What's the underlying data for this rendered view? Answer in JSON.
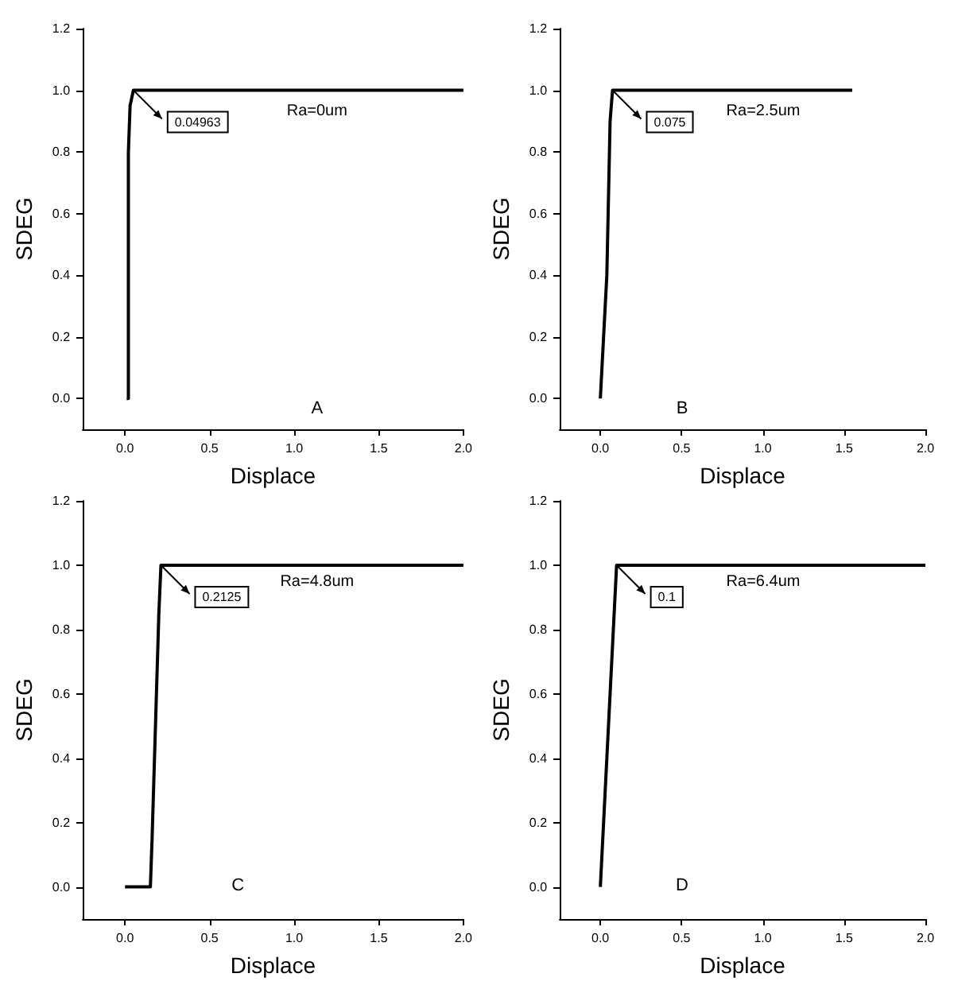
{
  "chart_data": [
    {
      "type": "line",
      "xlabel": "Displace",
      "ylabel": "SDEG",
      "xlim": [
        -0.25,
        2.0
      ],
      "ylim": [
        -0.1,
        1.2
      ],
      "xticks": [
        {
          "value": 0,
          "label": "0.0"
        },
        {
          "value": 0.5,
          "label": "0.5"
        },
        {
          "value": 1,
          "label": "1.0"
        },
        {
          "value": 1.5,
          "label": "1.5"
        },
        {
          "value": 2,
          "label": "2.0"
        }
      ],
      "yticks": [
        {
          "value": 0,
          "label": "0.0"
        },
        {
          "value": 0.2,
          "label": "0.2"
        },
        {
          "value": 0.4,
          "label": "0.4"
        },
        {
          "value": 0.6,
          "label": "0.6"
        },
        {
          "value": 0.8,
          "label": "0.8"
        },
        {
          "value": 1,
          "label": "1.0"
        },
        {
          "value": 1.2,
          "label": "1.2"
        }
      ],
      "series": [
        {
          "color": "#000000",
          "x": [
            0.01,
            0.02,
            0.02,
            0.03,
            0.04963,
            2.0
          ],
          "values": [
            0,
            0,
            0.8,
            0.95,
            1,
            1
          ]
        }
      ],
      "annotations": [
        {
          "text": "0.04963",
          "x": 0.04963,
          "y": 1
        },
        "Ra=0um",
        "A"
      ]
    },
    {
      "type": "line",
      "xlabel": "Displace",
      "ylabel": "SDEG",
      "xlim": [
        -0.25,
        2.0
      ],
      "ylim": [
        -0.1,
        1.2
      ],
      "xticks": [
        {
          "value": 0,
          "label": "0.0"
        },
        {
          "value": 0.5,
          "label": "0.5"
        },
        {
          "value": 1,
          "label": "1.0"
        },
        {
          "value": 1.5,
          "label": "1.5"
        },
        {
          "value": 2,
          "label": "2.0"
        }
      ],
      "yticks": [
        {
          "value": 0,
          "label": "0.0"
        },
        {
          "value": 0.2,
          "label": "0.2"
        },
        {
          "value": 0.4,
          "label": "0.4"
        },
        {
          "value": 0.6,
          "label": "0.6"
        },
        {
          "value": 0.8,
          "label": "0.8"
        },
        {
          "value": 1,
          "label": "1.0"
        },
        {
          "value": 1.2,
          "label": "1.2"
        }
      ],
      "series": [
        {
          "color": "#000000",
          "x": [
            0,
            0.04,
            0.06,
            0.075,
            1.55
          ],
          "values": [
            0,
            0.4,
            0.9,
            1,
            1
          ]
        }
      ],
      "annotations": [
        {
          "text": "0.075",
          "x": 0.075,
          "y": 1
        },
        "Ra=2.5um",
        "B"
      ]
    },
    {
      "type": "line",
      "xlabel": "Displace",
      "ylabel": "SDEG",
      "xlim": [
        -0.25,
        2.0
      ],
      "ylim": [
        -0.1,
        1.2
      ],
      "xticks": [
        {
          "value": 0,
          "label": "0.0"
        },
        {
          "value": 0.5,
          "label": "0.5"
        },
        {
          "value": 1,
          "label": "1.0"
        },
        {
          "value": 1.5,
          "label": "1.5"
        },
        {
          "value": 2,
          "label": "2.0"
        }
      ],
      "yticks": [
        {
          "value": 0,
          "label": "0.0"
        },
        {
          "value": 0.2,
          "label": "0.2"
        },
        {
          "value": 0.4,
          "label": "0.4"
        },
        {
          "value": 0.6,
          "label": "0.6"
        },
        {
          "value": 0.8,
          "label": "0.8"
        },
        {
          "value": 1,
          "label": "1.0"
        },
        {
          "value": 1.2,
          "label": "1.2"
        }
      ],
      "series": [
        {
          "color": "#000000",
          "x": [
            0,
            0.15,
            0.16,
            0.2,
            0.2125,
            2.0
          ],
          "values": [
            0,
            0,
            0.15,
            0.85,
            1,
            1
          ]
        }
      ],
      "annotations": [
        {
          "text": "0.2125",
          "x": 0.2125,
          "y": 1
        },
        "Ra=4.8um",
        "C"
      ]
    },
    {
      "type": "line",
      "xlabel": "Displace",
      "ylabel": "SDEG",
      "xlim": [
        -0.25,
        2.0
      ],
      "ylim": [
        -0.1,
        1.2
      ],
      "xticks": [
        {
          "value": 0,
          "label": "0.0"
        },
        {
          "value": 0.5,
          "label": "0.5"
        },
        {
          "value": 1,
          "label": "1.0"
        },
        {
          "value": 1.5,
          "label": "1.5"
        },
        {
          "value": 2,
          "label": "2.0"
        }
      ],
      "yticks": [
        {
          "value": 0,
          "label": "0.0"
        },
        {
          "value": 0.2,
          "label": "0.2"
        },
        {
          "value": 0.4,
          "label": "0.4"
        },
        {
          "value": 0.6,
          "label": "0.6"
        },
        {
          "value": 0.8,
          "label": "0.8"
        },
        {
          "value": 1,
          "label": "1.0"
        },
        {
          "value": 1.2,
          "label": "1.2"
        }
      ],
      "series": [
        {
          "color": "#000000",
          "x": [
            0,
            0.1,
            2.0
          ],
          "values": [
            0,
            1,
            1
          ]
        }
      ],
      "annotations": [
        {
          "text": "0.1",
          "x": 0.1,
          "y": 1
        },
        "Ra=6.4um",
        "D"
      ]
    }
  ]
}
